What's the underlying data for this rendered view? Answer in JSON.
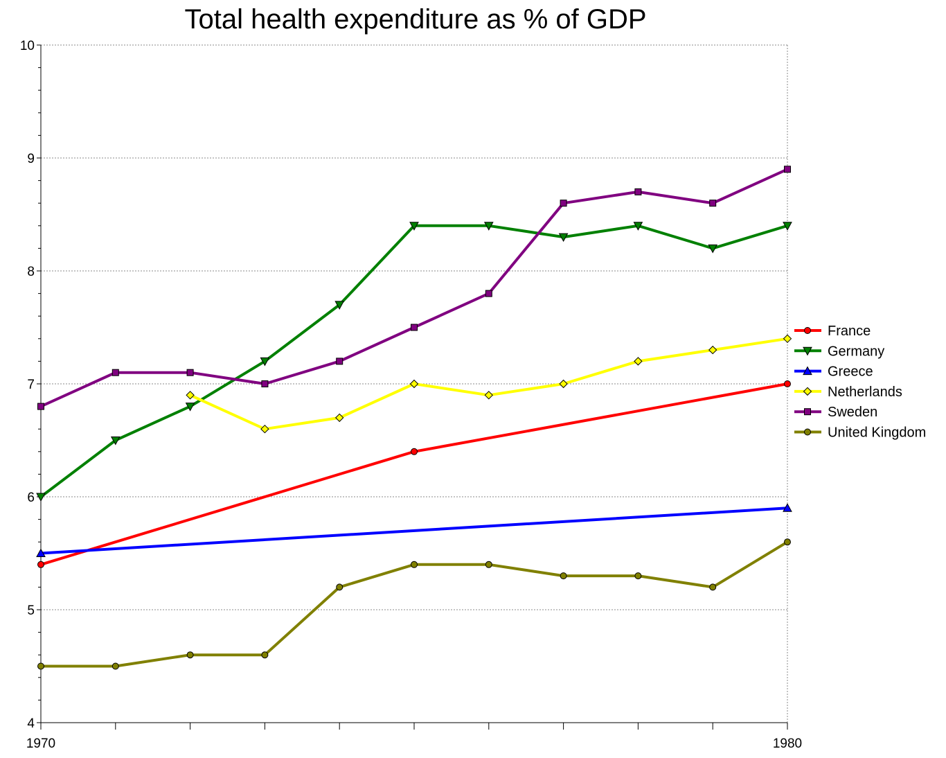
{
  "chart_data": {
    "type": "line",
    "title": "Total health expenditure as % of GDP",
    "xlabel": "",
    "ylabel": "",
    "x": [
      1970,
      1971,
      1972,
      1973,
      1974,
      1975,
      1976,
      1977,
      1978,
      1979,
      1980
    ],
    "xlim": [
      1970,
      1980
    ],
    "ylim": [
      4,
      10
    ],
    "x_tick_labels": [
      "1970",
      "1980"
    ],
    "y_tick_labels": [
      "4",
      "5",
      "6",
      "7",
      "8",
      "9",
      "10"
    ],
    "grid": true,
    "legend_position": "right",
    "series": [
      {
        "name": "France",
        "color": "#ff0000",
        "marker": "circle",
        "points": [
          [
            1970,
            5.4
          ],
          [
            1975,
            6.4
          ],
          [
            1980,
            7.0
          ]
        ]
      },
      {
        "name": "Germany",
        "color": "#008000",
        "marker": "triangle-down",
        "points": [
          [
            1970,
            6.0
          ],
          [
            1971,
            6.5
          ],
          [
            1972,
            6.8
          ],
          [
            1973,
            7.2
          ],
          [
            1974,
            7.7
          ],
          [
            1975,
            8.4
          ],
          [
            1976,
            8.4
          ],
          [
            1977,
            8.3
          ],
          [
            1978,
            8.4
          ],
          [
            1979,
            8.2
          ],
          [
            1980,
            8.4
          ]
        ]
      },
      {
        "name": "Greece",
        "color": "#0000ff",
        "marker": "triangle-up",
        "points": [
          [
            1970,
            5.5
          ],
          [
            1980,
            5.9
          ]
        ]
      },
      {
        "name": "Netherlands",
        "color": "#ffff00",
        "marker": "diamond",
        "points": [
          [
            1972,
            6.9
          ],
          [
            1973,
            6.6
          ],
          [
            1974,
            6.7
          ],
          [
            1975,
            7.0
          ],
          [
            1976,
            6.9
          ],
          [
            1977,
            7.0
          ],
          [
            1978,
            7.2
          ],
          [
            1979,
            7.3
          ],
          [
            1980,
            7.4
          ]
        ]
      },
      {
        "name": "Sweden",
        "color": "#800080",
        "marker": "square",
        "points": [
          [
            1970,
            6.8
          ],
          [
            1971,
            7.1
          ],
          [
            1972,
            7.1
          ],
          [
            1973,
            7.0
          ],
          [
            1974,
            7.2
          ],
          [
            1975,
            7.5
          ],
          [
            1976,
            7.8
          ],
          [
            1977,
            8.6
          ],
          [
            1978,
            8.7
          ],
          [
            1979,
            8.6
          ],
          [
            1980,
            8.9
          ]
        ]
      },
      {
        "name": "United Kingdom",
        "color": "#808000",
        "marker": "circle",
        "points": [
          [
            1970,
            4.5
          ],
          [
            1971,
            4.5
          ],
          [
            1972,
            4.6
          ],
          [
            1973,
            4.6
          ],
          [
            1974,
            5.2
          ],
          [
            1975,
            5.4
          ],
          [
            1976,
            5.4
          ],
          [
            1977,
            5.3
          ],
          [
            1978,
            5.3
          ],
          [
            1979,
            5.2
          ],
          [
            1980,
            5.6
          ]
        ]
      }
    ]
  }
}
